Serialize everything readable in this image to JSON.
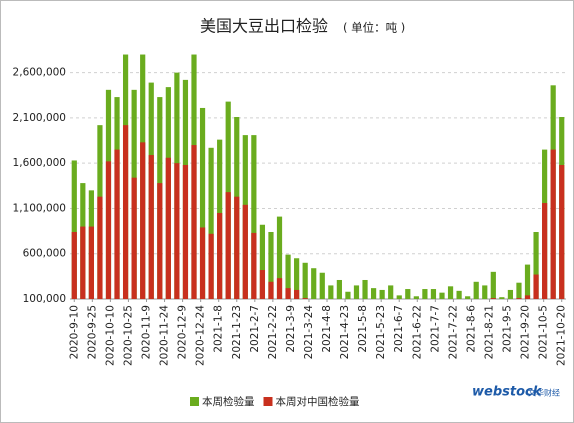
{
  "chart_data": {
    "type": "bar",
    "title": "美国大豆出口检验",
    "subtitle": "( 单位：吨 )",
    "x_labels": [
      "2020-9-10",
      "2020-9-25",
      "2020-10-10",
      "2020-10-25",
      "2020-11-9",
      "2020-11-24",
      "2020-12-9",
      "2020-12-24",
      "2021-1-8",
      "2021-1-23",
      "2021-2-7",
      "2021-2-22",
      "2021-3-9",
      "2021-3-24",
      "2021-4-8",
      "2021-4-23",
      "2021-5-8",
      "2021-5-23",
      "2021-6-7",
      "2021-6-22",
      "2021-7-7",
      "2021-7-22",
      "2021-8-6",
      "2021-8-21",
      "2021-9-5",
      "2021-9-20",
      "2021-10-5",
      "2021-10-20"
    ],
    "series": [
      {
        "name": "本周检验量",
        "color": "#6aac1e",
        "values": [
          1630000,
          1380000,
          1300000,
          2020000,
          2410000,
          2330000,
          2800000,
          2410000,
          2800000,
          2490000,
          2330000,
          2440000,
          2600000,
          2520000,
          2800000,
          2210000,
          1770000,
          1860000,
          2280000,
          2110000,
          1910000,
          1910000,
          920000,
          840000,
          1010000,
          590000,
          550000,
          500000,
          440000,
          390000,
          250000,
          310000,
          180000,
          250000,
          310000,
          220000,
          200000,
          250000,
          140000,
          210000,
          130000,
          210000,
          210000,
          170000,
          240000,
          190000,
          130000,
          290000,
          250000,
          400000,
          120000,
          200000,
          280000,
          480000,
          840000,
          1750000,
          2460000,
          2110000
        ]
      },
      {
        "name": "本周对中国检验量",
        "color": "#c8301e",
        "values": [
          840000,
          900000,
          900000,
          1230000,
          1620000,
          1750000,
          2020000,
          1440000,
          1830000,
          1690000,
          1380000,
          1660000,
          1600000,
          1580000,
          1800000,
          890000,
          820000,
          1050000,
          1280000,
          1230000,
          1140000,
          830000,
          420000,
          290000,
          330000,
          220000,
          200000,
          110000,
          100000,
          100000,
          100000,
          100000,
          100000,
          100000,
          100000,
          100000,
          100000,
          100000,
          100000,
          100000,
          100000,
          100000,
          100000,
          100000,
          100000,
          100000,
          100000,
          100000,
          100000,
          110000,
          100000,
          100000,
          110000,
          140000,
          370000,
          1160000,
          1750000,
          1580000
        ]
      }
    ],
    "ylim": [
      100000,
      2850000
    ],
    "yticks": [
      {
        "value": 100000,
        "label": "100,000"
      },
      {
        "value": 600000,
        "label": "600,000"
      },
      {
        "value": 1100000,
        "label": "1,100,000"
      },
      {
        "value": 1600000,
        "label": "1,600,000"
      },
      {
        "value": 2100000,
        "label": "2,100,000"
      },
      {
        "value": 2600000,
        "label": "2,600,000"
      }
    ],
    "grid": true,
    "logo": "webstock",
    "logo_sub": "文华财经"
  }
}
